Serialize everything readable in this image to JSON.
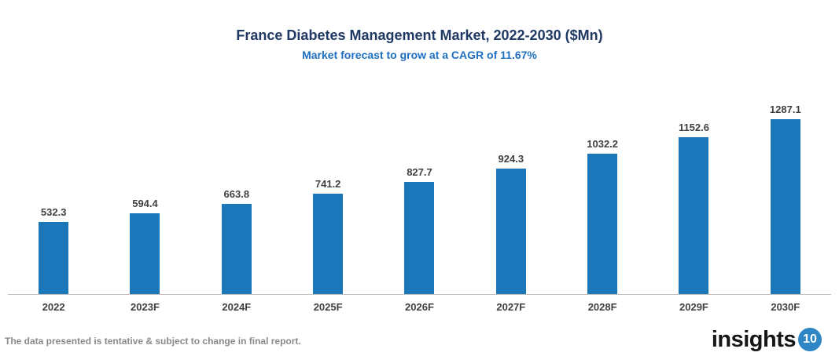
{
  "header": {
    "title": "France Diabetes Management Market, 2022-2030 ($Mn)",
    "subtitle": "Market forecast to grow at a CAGR of 11.67%"
  },
  "chart_data": {
    "type": "bar",
    "categories": [
      "2022",
      "2023F",
      "2024F",
      "2025F",
      "2026F",
      "2027F",
      "2028F",
      "2029F",
      "2030F"
    ],
    "values": [
      532.3,
      594.4,
      663.8,
      741.2,
      827.7,
      924.3,
      1032.2,
      1152.6,
      1287.1
    ],
    "title": "France Diabetes Management Market, 2022-2030 ($Mn)",
    "subtitle": "Market forecast to grow at a CAGR of 11.67%",
    "xlabel": "",
    "ylabel": "",
    "ylim": [
      0,
      1400
    ],
    "grid": false,
    "legend": "none",
    "value_labels_shown": true,
    "bar_color": "#1b77ba",
    "label_color": "#404040",
    "axis_line_color": "#bfbfbf"
  },
  "footer": {
    "disclaimer": "The data presented is tentative & subject to change in final report.",
    "logo_text": "insights",
    "logo_badge": "10"
  },
  "colors": {
    "title": "#1f3864",
    "subtitle": "#1e6fc0",
    "bar": "#1b77ba",
    "data_label": "#404040",
    "disclaimer": "#8a8a8a",
    "logo_badge_bg": "#2e86c5",
    "axis_line": "#bfbfbf"
  }
}
